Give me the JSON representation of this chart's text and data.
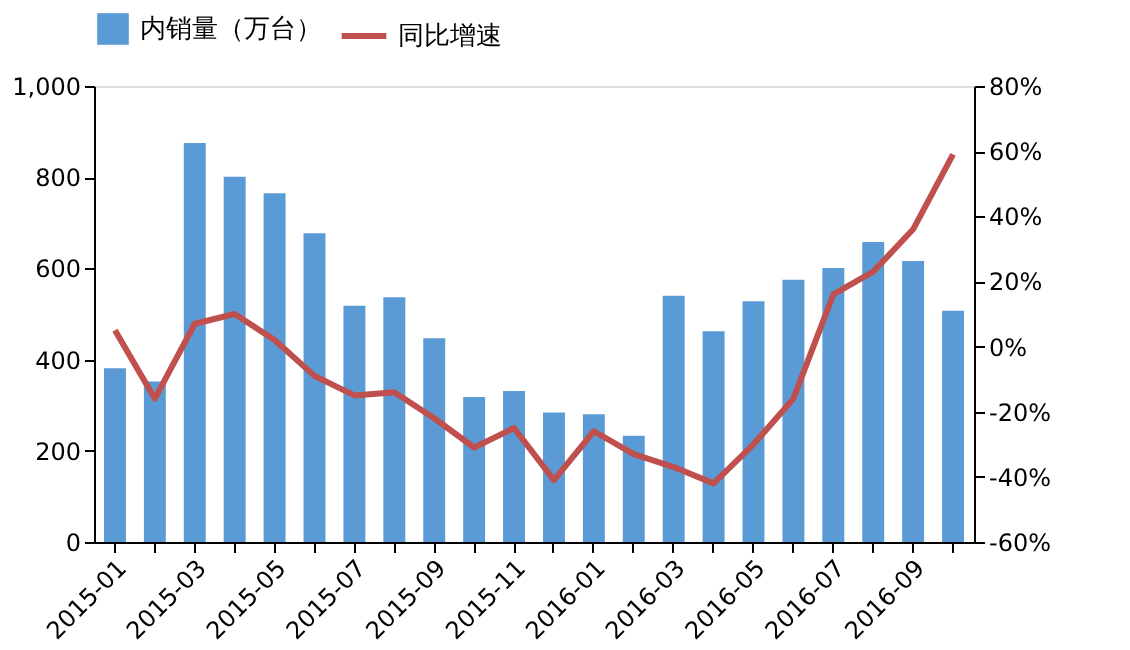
{
  "chart_data": {
    "type": "bar",
    "categories": [
      "2015-01",
      null,
      "2015-03",
      null,
      "2015-05",
      null,
      "2015-07",
      null,
      "2015-09",
      null,
      "2015-11",
      null,
      "2016-01",
      null,
      "2016-03",
      null,
      "2016-05",
      null,
      "2016-07",
      null,
      "2016-09",
      null
    ],
    "series": [
      {
        "name": "内销量（万台）",
        "color": "#5b9bd5",
        "values": [
          381,
          352,
          875,
          801,
          765,
          677,
          518,
          537,
          447,
          318,
          331,
          284,
          280,
          233,
          540,
          462,
          528,
          575,
          601,
          658,
          616,
          507
        ]
      },
      {
        "name": "同比增速",
        "type": "line",
        "axis": "y2",
        "color": "#c0504d",
        "values": [
          5,
          -16,
          7,
          10,
          2,
          -9,
          -15,
          -14,
          -22,
          -31,
          -25,
          -41,
          -26,
          -33,
          -37,
          -42,
          -30,
          -16,
          16,
          23,
          36,
          59
        ]
      }
    ],
    "ylim": [
      0,
      1000
    ],
    "yticks": [
      0,
      200,
      400,
      600,
      800,
      {
        "value": 1000,
        "label": "1,000"
      }
    ],
    "y2lim": [
      -60,
      80
    ],
    "y2ticks": [
      {
        "value": -60,
        "label": "-60%"
      },
      {
        "value": -40,
        "label": "-40%"
      },
      {
        "value": -20,
        "label": "-20%"
      },
      {
        "value": 0,
        "label": "0%"
      },
      {
        "value": 20,
        "label": "20%"
      },
      {
        "value": 40,
        "label": "40%"
      },
      {
        "value": 60,
        "label": "60%"
      },
      {
        "value": 80,
        "label": "80%"
      }
    ],
    "grid": false,
    "legend": "top"
  }
}
